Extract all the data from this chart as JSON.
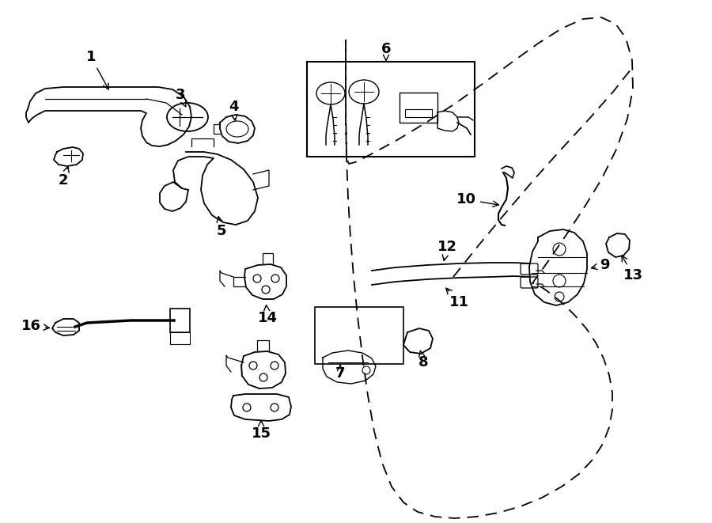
{
  "bg_color": "#ffffff",
  "line_color": "#000000",
  "lw": 1.3,
  "fig_w": 9.0,
  "fig_h": 6.61,
  "dpi": 100
}
